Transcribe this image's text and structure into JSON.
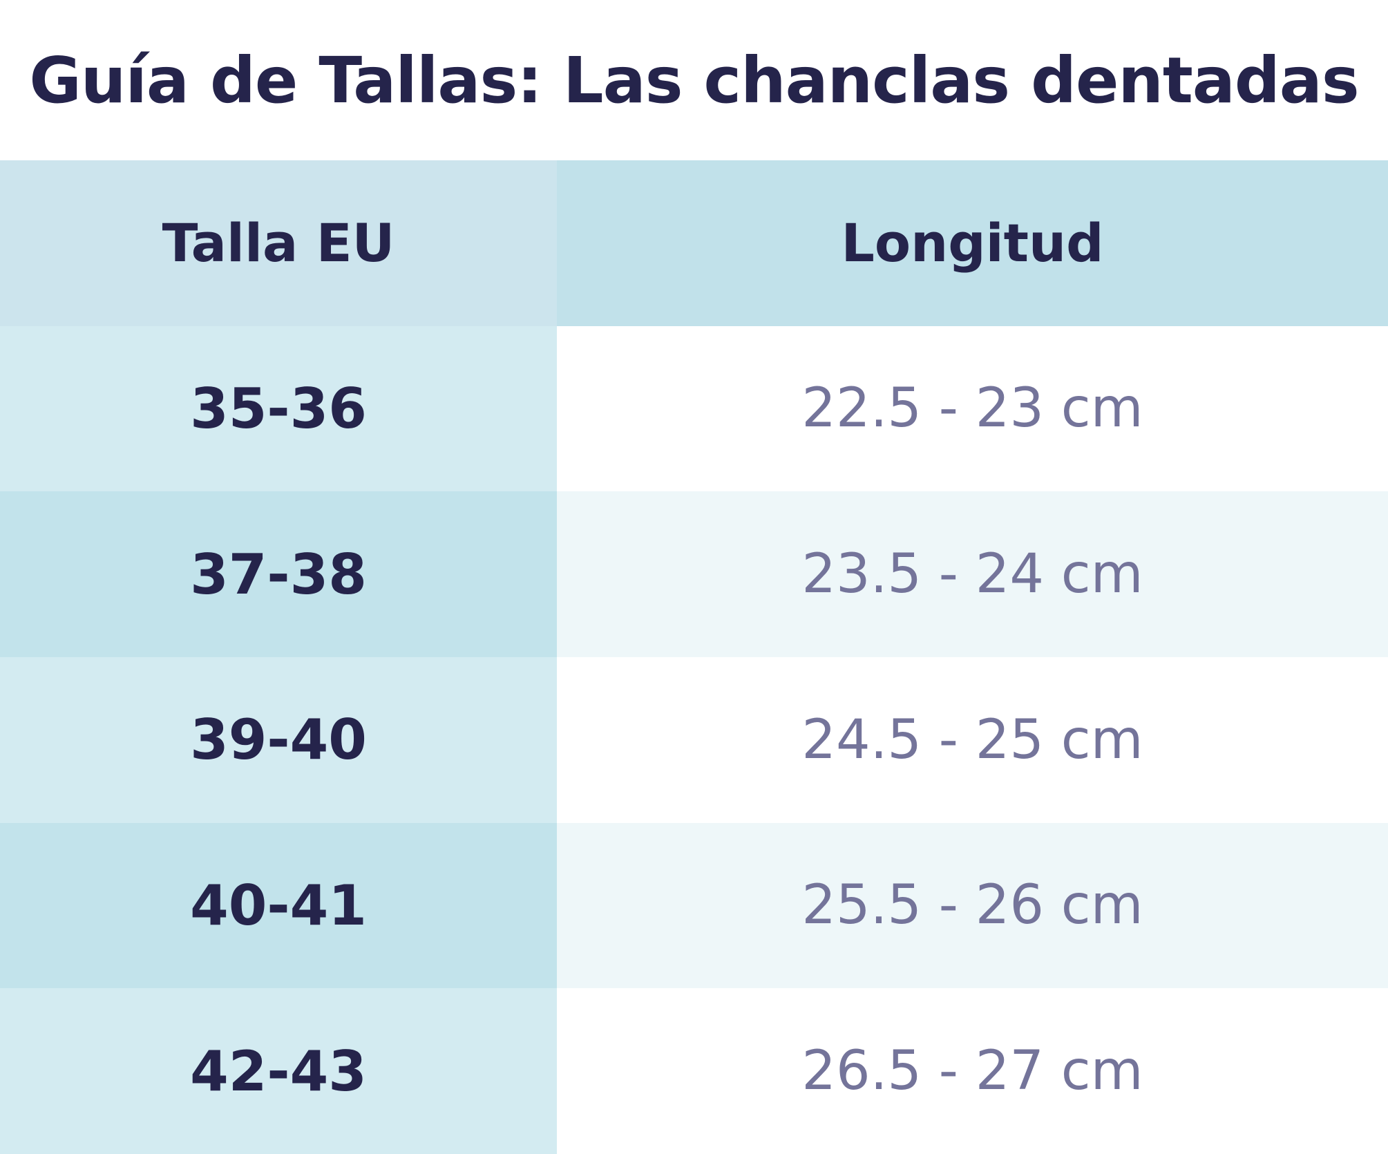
{
  "title": "Guía de Tallas: Las chanclas dentadas",
  "table": {
    "headers": [
      "Talla EU",
      "Longitud"
    ],
    "rows": [
      {
        "size": "35-36",
        "length": "22.5 - 23 cm"
      },
      {
        "size": "37-38",
        "length": "23.5 - 24 cm"
      },
      {
        "size": "39-40",
        "length": "24.5 - 25 cm"
      },
      {
        "size": "40-41",
        "length": "25.5 - 26 cm"
      },
      {
        "size": "42-43",
        "length": "26.5 - 27 cm"
      }
    ]
  },
  "colors": {
    "text_dark": "#25244b",
    "text_muted": "#74749a",
    "header_bg": "#c1e1ea",
    "size_col_bg": "#d3ebf1",
    "size_col_alt_bg": "#c2e3eb",
    "row_alt_bg": "#eef7f9"
  }
}
